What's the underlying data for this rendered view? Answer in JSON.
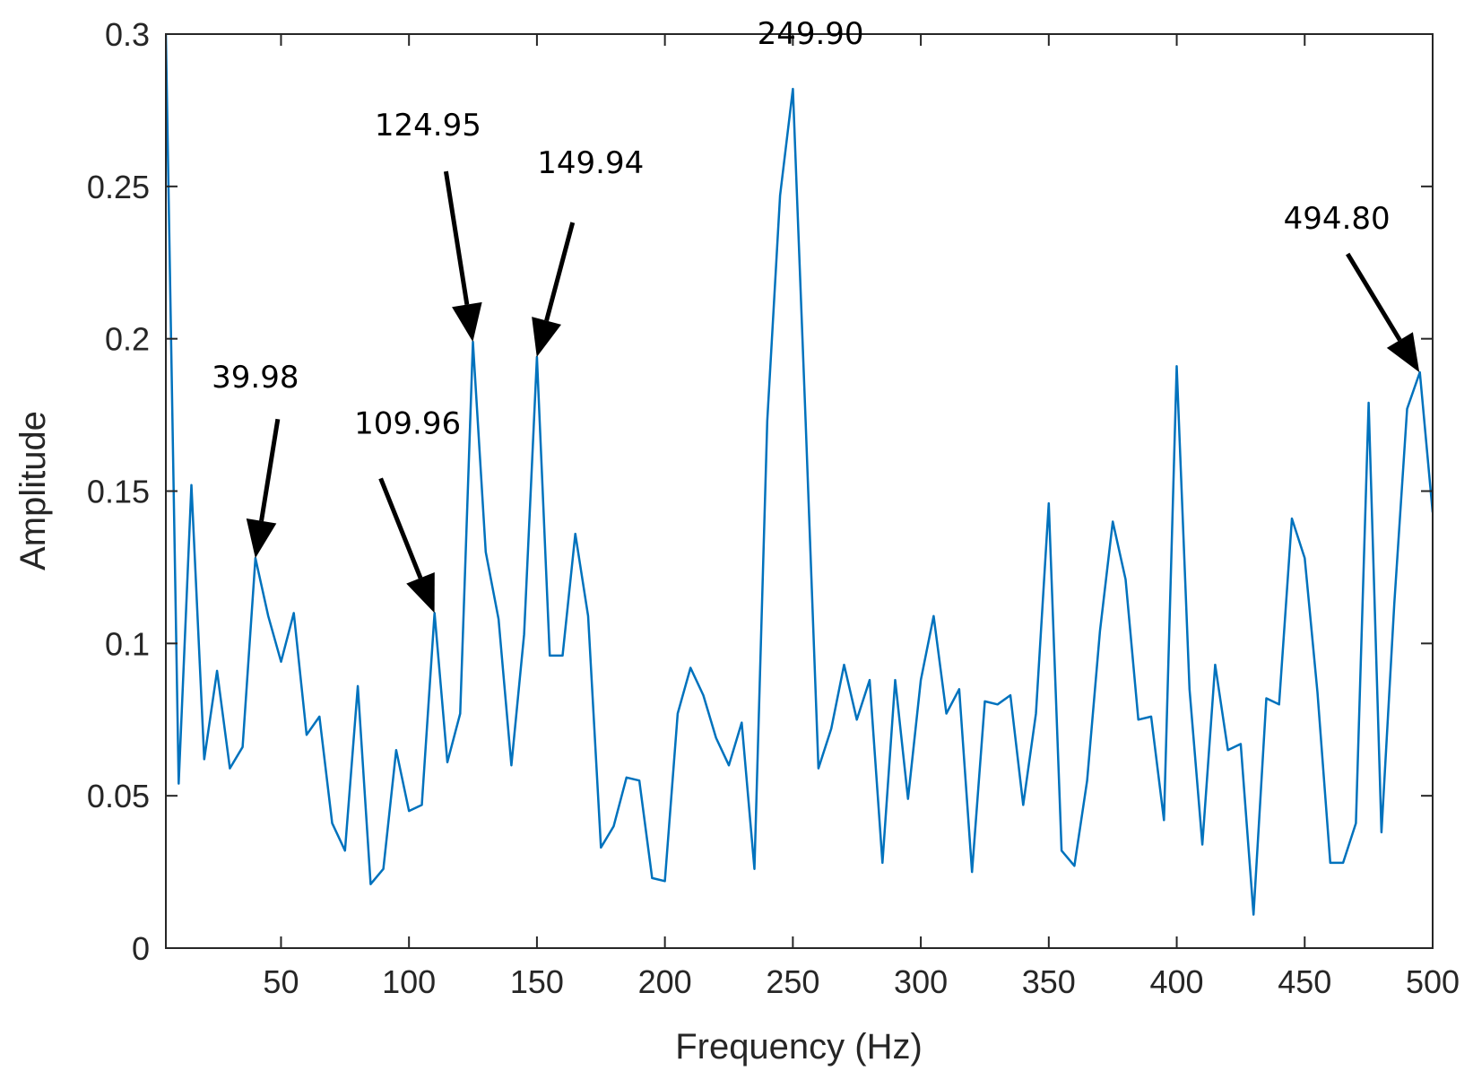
{
  "chart_data": {
    "type": "line",
    "title": "",
    "xlabel": "Frequency (Hz)",
    "ylabel": "Amplitude",
    "xlim": [
      5,
      500
    ],
    "ylim": [
      0,
      0.3
    ],
    "xticks": [
      50,
      100,
      150,
      200,
      250,
      300,
      350,
      400,
      450,
      500
    ],
    "yticks": [
      0,
      0.05,
      0.1,
      0.15,
      0.2,
      0.25,
      0.3
    ],
    "ytick_labels": [
      "0",
      "0.05",
      "0.1",
      "0.15",
      "0.2",
      "0.25",
      "0.3"
    ],
    "grid": false,
    "box": true,
    "line_color": "#0072BD",
    "series": [
      {
        "x": [
          5,
          10,
          15,
          20,
          25,
          30,
          35,
          40,
          45,
          50,
          55,
          60,
          65,
          70,
          75,
          80,
          85,
          90,
          95,
          100,
          105,
          110,
          115,
          120,
          125,
          130,
          135,
          140,
          145,
          150,
          155,
          160,
          165,
          170,
          175,
          180,
          185,
          190,
          195,
          200,
          205,
          210,
          215,
          220,
          225,
          230,
          235,
          240,
          245,
          250,
          255,
          260,
          265,
          270,
          275,
          280,
          285,
          290,
          295,
          300,
          305,
          310,
          315,
          320,
          325,
          330,
          335,
          340,
          345,
          350,
          355,
          360,
          365,
          370,
          375,
          380,
          385,
          390,
          395,
          400,
          405,
          410,
          415,
          420,
          425,
          430,
          435,
          440,
          445,
          450,
          455,
          460,
          465,
          470,
          475,
          480,
          485,
          490,
          495,
          500
        ],
        "values": [
          0.3,
          0.054,
          0.152,
          0.062,
          0.091,
          0.059,
          0.066,
          0.128,
          0.109,
          0.094,
          0.11,
          0.07,
          0.076,
          0.041,
          0.032,
          0.086,
          0.021,
          0.026,
          0.065,
          0.045,
          0.047,
          0.11,
          0.061,
          0.077,
          0.199,
          0.13,
          0.108,
          0.06,
          0.103,
          0.194,
          0.096,
          0.096,
          0.136,
          0.109,
          0.033,
          0.04,
          0.056,
          0.055,
          0.023,
          0.022,
          0.077,
          0.092,
          0.083,
          0.069,
          0.06,
          0.074,
          0.026,
          0.173,
          0.247,
          0.282,
          0.173,
          0.059,
          0.072,
          0.093,
          0.075,
          0.088,
          0.028,
          0.088,
          0.049,
          0.088,
          0.109,
          0.077,
          0.085,
          0.025,
          0.081,
          0.08,
          0.083,
          0.047,
          0.077,
          0.146,
          0.032,
          0.027,
          0.055,
          0.104,
          0.14,
          0.121,
          0.075,
          0.076,
          0.042,
          0.191,
          0.085,
          0.034,
          0.093,
          0.065,
          0.067,
          0.011,
          0.082,
          0.08,
          0.141,
          0.128,
          0.084,
          0.028,
          0.028,
          0.041,
          0.179,
          0.038,
          0.113,
          0.177,
          0.189,
          0.143
        ]
      }
    ],
    "annotations": [
      {
        "label": "39.98",
        "x": 39.98,
        "y": 0.128,
        "arrow": true
      },
      {
        "label": "109.96",
        "x": 109.96,
        "y": 0.11,
        "arrow": true
      },
      {
        "label": "124.95",
        "x": 124.95,
        "y": 0.199,
        "arrow": true
      },
      {
        "label": "149.94",
        "x": 149.94,
        "y": 0.194,
        "arrow": true
      },
      {
        "label": "249.90",
        "x": 249.9,
        "y": 0.282,
        "arrow": false
      },
      {
        "label": "494.80",
        "x": 494.8,
        "y": 0.189,
        "arrow": true
      }
    ]
  }
}
